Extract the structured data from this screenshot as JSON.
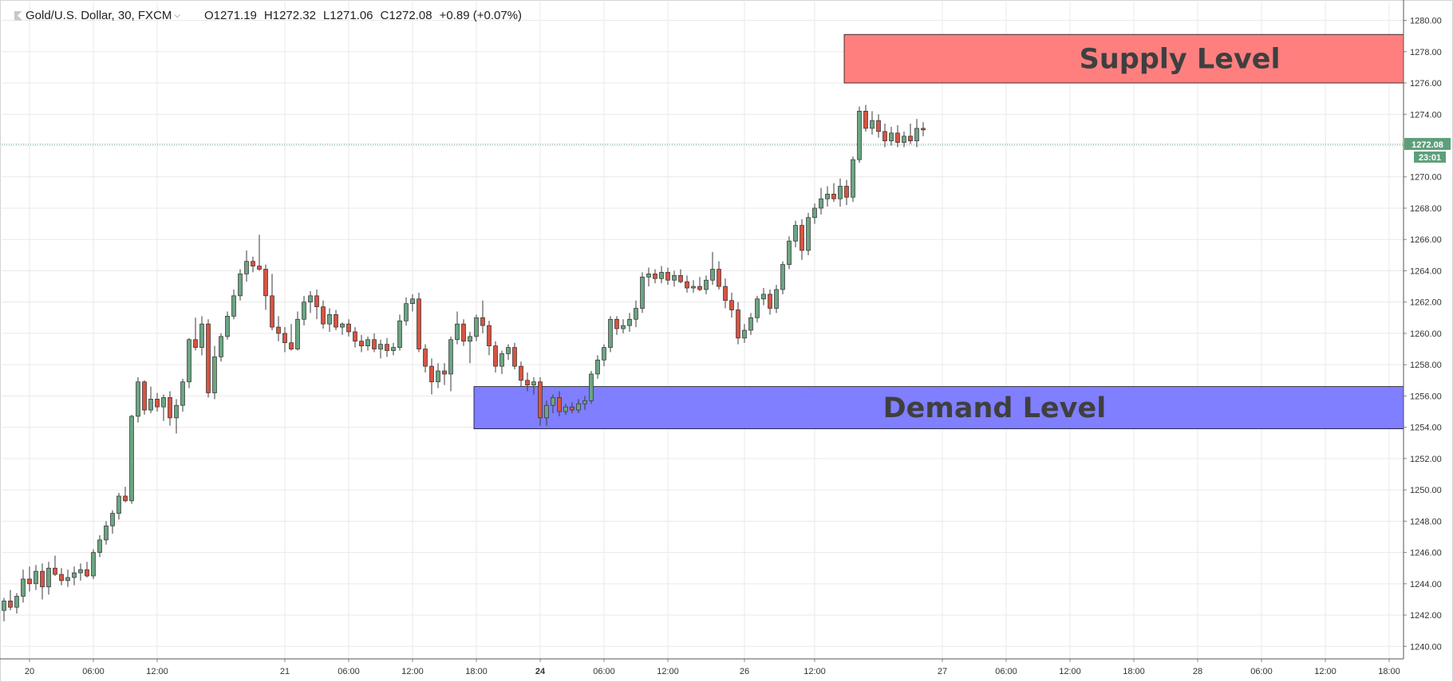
{
  "legend": {
    "symbol": "Gold/U.S. Dollar, 30, FXCM",
    "open": "O1271.19",
    "high": "H1272.32",
    "low": "L1271.06",
    "close": "C1272.08",
    "change": "+0.89 (+0.07%)"
  },
  "price_label": "1272.08",
  "timer_label": "23:01",
  "colors": {
    "up": "#6ba583",
    "down": "#d75442",
    "supply_zone": "#ff7f7f",
    "demand_zone": "#7f7fff",
    "price_tag": "#5e9f7a",
    "grid": "#e9e9e9"
  },
  "chart_data": {
    "type": "candlestick",
    "grid": true,
    "ylim": [
      1239.2,
      1281.2
    ],
    "y_ticks": [
      "1240.00",
      "1242.00",
      "1244.00",
      "1246.00",
      "1248.00",
      "1250.00",
      "1252.00",
      "1254.00",
      "1256.00",
      "1258.00",
      "1260.00",
      "1262.00",
      "1264.00",
      "1266.00",
      "1268.00",
      "1270.00",
      "1272.00",
      "1274.00",
      "1276.00",
      "1278.00",
      "1280.00"
    ],
    "x_ticks": [
      {
        "label": "20",
        "i": 4,
        "bold": false
      },
      {
        "label": "06:00",
        "i": 14,
        "bold": false
      },
      {
        "label": "12:00",
        "i": 24,
        "bold": false
      },
      {
        "label": "21",
        "i": 44,
        "bold": false
      },
      {
        "label": "06:00",
        "i": 54,
        "bold": false
      },
      {
        "label": "12:00",
        "i": 64,
        "bold": false
      },
      {
        "label": "18:00",
        "i": 74,
        "bold": false
      },
      {
        "label": "24",
        "i": 84,
        "bold": true
      },
      {
        "label": "06:00",
        "i": 94,
        "bold": false
      },
      {
        "label": "12:00",
        "i": 104,
        "bold": false
      },
      {
        "label": "26",
        "i": 116,
        "bold": false
      },
      {
        "label": "12:00",
        "i": 127,
        "bold": false
      },
      {
        "label": "27",
        "i": 147,
        "bold": false
      },
      {
        "label": "06:00",
        "i": 157,
        "bold": false
      },
      {
        "label": "12:00",
        "i": 167,
        "bold": false
      },
      {
        "label": "18:00",
        "i": 177,
        "bold": false
      },
      {
        "label": "28",
        "i": 187,
        "bold": false
      },
      {
        "label": "06:00",
        "i": 197,
        "bold": false
      },
      {
        "label": "12:00",
        "i": 207,
        "bold": false
      },
      {
        "label": "18:00",
        "i": 217,
        "bold": false
      }
    ],
    "last_price": 1272.08,
    "zones": [
      {
        "label": "Supply Level",
        "from_i": 132,
        "low": 1276.0,
        "high": 1279.1,
        "color": "#ff7f7f"
      },
      {
        "label": "Demand Level",
        "from_i": 74,
        "low": 1253.9,
        "high": 1256.6,
        "color": "#7f7fff"
      }
    ],
    "candles": [
      [
        1242.3,
        1243.1,
        1241.6,
        1242.9
      ],
      [
        1242.9,
        1243.6,
        1242.3,
        1242.5
      ],
      [
        1242.5,
        1243.4,
        1242.1,
        1243.2
      ],
      [
        1243.2,
        1244.9,
        1242.8,
        1244.3
      ],
      [
        1244.3,
        1245.1,
        1243.5,
        1244.0
      ],
      [
        1244.0,
        1245.2,
        1243.6,
        1244.8
      ],
      [
        1244.8,
        1245.3,
        1243.0,
        1243.8
      ],
      [
        1243.8,
        1245.4,
        1243.3,
        1245.0
      ],
      [
        1245.0,
        1245.8,
        1244.5,
        1244.6
      ],
      [
        1244.6,
        1245.0,
        1243.9,
        1244.2
      ],
      [
        1244.2,
        1244.9,
        1243.8,
        1244.4
      ],
      [
        1244.4,
        1245.1,
        1243.9,
        1244.7
      ],
      [
        1244.7,
        1245.3,
        1244.2,
        1244.9
      ],
      [
        1244.9,
        1245.4,
        1244.4,
        1244.5
      ],
      [
        1244.5,
        1246.2,
        1244.3,
        1246.0
      ],
      [
        1246.0,
        1247.1,
        1245.7,
        1246.8
      ],
      [
        1246.8,
        1248.0,
        1246.5,
        1247.7
      ],
      [
        1247.7,
        1248.7,
        1247.2,
        1248.5
      ],
      [
        1248.5,
        1249.8,
        1248.1,
        1249.6
      ],
      [
        1249.6,
        1250.2,
        1249.2,
        1249.3
      ],
      [
        1249.3,
        1254.8,
        1249.1,
        1254.7
      ],
      [
        1254.7,
        1257.2,
        1254.3,
        1256.9
      ],
      [
        1256.9,
        1257.0,
        1254.8,
        1255.1
      ],
      [
        1255.1,
        1256.6,
        1254.9,
        1255.8
      ],
      [
        1255.8,
        1256.2,
        1255.0,
        1255.3
      ],
      [
        1255.3,
        1256.1,
        1254.4,
        1255.9
      ],
      [
        1255.9,
        1256.3,
        1254.1,
        1254.6
      ],
      [
        1254.6,
        1255.8,
        1253.6,
        1255.4
      ],
      [
        1255.4,
        1257.1,
        1255.0,
        1256.9
      ],
      [
        1256.9,
        1259.7,
        1256.5,
        1259.6
      ],
      [
        1259.6,
        1261.0,
        1258.9,
        1259.1
      ],
      [
        1259.1,
        1261.1,
        1258.6,
        1260.6
      ],
      [
        1260.6,
        1260.9,
        1255.9,
        1256.2
      ],
      [
        1256.2,
        1259.2,
        1255.8,
        1258.5
      ],
      [
        1258.5,
        1260.0,
        1258.2,
        1259.8
      ],
      [
        1259.8,
        1261.4,
        1259.6,
        1261.1
      ],
      [
        1261.1,
        1262.8,
        1260.9,
        1262.4
      ],
      [
        1262.4,
        1264.1,
        1262.1,
        1263.8
      ],
      [
        1263.8,
        1265.3,
        1263.3,
        1264.6
      ],
      [
        1264.6,
        1264.9,
        1263.9,
        1264.3
      ],
      [
        1264.3,
        1266.3,
        1264.0,
        1264.1
      ],
      [
        1264.1,
        1264.4,
        1261.5,
        1262.4
      ],
      [
        1262.4,
        1263.8,
        1260.2,
        1260.4
      ],
      [
        1260.4,
        1261.1,
        1259.5,
        1260.0
      ],
      [
        1260.0,
        1260.4,
        1258.8,
        1259.4
      ],
      [
        1259.4,
        1260.6,
        1258.9,
        1259.0
      ],
      [
        1259.0,
        1261.4,
        1258.9,
        1260.9
      ],
      [
        1260.9,
        1262.4,
        1260.5,
        1262.0
      ],
      [
        1262.0,
        1262.7,
        1261.3,
        1262.4
      ],
      [
        1262.4,
        1262.8,
        1260.9,
        1261.7
      ],
      [
        1261.7,
        1262.1,
        1260.3,
        1260.6
      ],
      [
        1260.6,
        1261.6,
        1260.1,
        1261.2
      ],
      [
        1261.2,
        1261.5,
        1260.2,
        1260.4
      ],
      [
        1260.4,
        1260.7,
        1259.9,
        1260.6
      ],
      [
        1260.6,
        1260.9,
        1259.8,
        1260.1
      ],
      [
        1260.1,
        1260.4,
        1259.1,
        1259.5
      ],
      [
        1259.5,
        1259.9,
        1258.8,
        1259.2
      ],
      [
        1259.2,
        1259.8,
        1258.9,
        1259.6
      ],
      [
        1259.6,
        1260.0,
        1258.8,
        1259.0
      ],
      [
        1259.0,
        1259.6,
        1258.4,
        1259.3
      ],
      [
        1259.3,
        1259.7,
        1258.5,
        1258.9
      ],
      [
        1258.9,
        1259.4,
        1258.6,
        1259.1
      ],
      [
        1259.1,
        1261.2,
        1258.9,
        1260.8
      ],
      [
        1260.8,
        1262.3,
        1260.5,
        1261.9
      ],
      [
        1261.9,
        1262.5,
        1261.4,
        1262.2
      ],
      [
        1262.2,
        1262.6,
        1258.8,
        1259.0
      ],
      [
        1259.0,
        1259.3,
        1257.5,
        1257.9
      ],
      [
        1257.9,
        1258.4,
        1256.1,
        1256.9
      ],
      [
        1256.9,
        1258.1,
        1256.5,
        1257.6
      ],
      [
        1257.6,
        1258.1,
        1256.7,
        1257.4
      ],
      [
        1257.4,
        1259.8,
        1256.3,
        1259.6
      ],
      [
        1259.6,
        1261.4,
        1259.3,
        1260.6
      ],
      [
        1260.6,
        1260.9,
        1259.2,
        1259.5
      ],
      [
        1259.5,
        1260.1,
        1258.1,
        1259.8
      ],
      [
        1259.8,
        1261.2,
        1259.5,
        1261.0
      ],
      [
        1261.0,
        1262.1,
        1260.0,
        1260.5
      ],
      [
        1260.5,
        1260.8,
        1258.6,
        1259.2
      ],
      [
        1259.2,
        1259.5,
        1257.5,
        1257.9
      ],
      [
        1257.9,
        1258.9,
        1257.4,
        1258.7
      ],
      [
        1258.7,
        1259.3,
        1258.3,
        1259.1
      ],
      [
        1259.1,
        1259.4,
        1257.7,
        1257.9
      ],
      [
        1257.9,
        1258.2,
        1256.6,
        1257.0
      ],
      [
        1257.0,
        1257.5,
        1256.3,
        1256.7
      ],
      [
        1256.7,
        1257.2,
        1256.1,
        1256.9
      ],
      [
        1256.9,
        1257.2,
        1254.1,
        1254.6
      ],
      [
        1254.6,
        1255.7,
        1254.1,
        1255.4
      ],
      [
        1255.4,
        1256.1,
        1254.9,
        1255.9
      ],
      [
        1255.9,
        1256.3,
        1254.7,
        1255.0
      ],
      [
        1255.0,
        1255.5,
        1254.8,
        1255.3
      ],
      [
        1255.3,
        1255.6,
        1254.9,
        1255.1
      ],
      [
        1255.1,
        1255.8,
        1254.9,
        1255.5
      ],
      [
        1255.5,
        1256.0,
        1255.1,
        1255.7
      ],
      [
        1255.7,
        1257.6,
        1255.5,
        1257.4
      ],
      [
        1257.4,
        1258.6,
        1257.1,
        1258.3
      ],
      [
        1258.3,
        1259.3,
        1257.9,
        1259.1
      ],
      [
        1259.1,
        1261.1,
        1258.8,
        1260.9
      ],
      [
        1260.9,
        1261.1,
        1259.9,
        1260.3
      ],
      [
        1260.3,
        1260.9,
        1260.0,
        1260.5
      ],
      [
        1260.5,
        1261.3,
        1260.1,
        1260.9
      ],
      [
        1260.9,
        1262.1,
        1260.4,
        1261.6
      ],
      [
        1261.6,
        1263.9,
        1261.3,
        1263.6
      ],
      [
        1263.6,
        1264.2,
        1263.0,
        1263.8
      ],
      [
        1263.8,
        1264.1,
        1263.2,
        1263.5
      ],
      [
        1263.5,
        1264.3,
        1263.2,
        1263.9
      ],
      [
        1263.9,
        1264.2,
        1263.1,
        1263.4
      ],
      [
        1263.4,
        1264.0,
        1263.0,
        1263.7
      ],
      [
        1263.7,
        1264.1,
        1263.2,
        1263.3
      ],
      [
        1263.3,
        1263.7,
        1262.6,
        1262.9
      ],
      [
        1262.9,
        1263.4,
        1262.6,
        1263.0
      ],
      [
        1263.0,
        1263.6,
        1262.7,
        1262.8
      ],
      [
        1262.8,
        1263.7,
        1262.5,
        1263.4
      ],
      [
        1263.4,
        1265.2,
        1263.1,
        1264.1
      ],
      [
        1264.1,
        1264.6,
        1262.8,
        1263.0
      ],
      [
        1263.0,
        1263.5,
        1261.6,
        1262.1
      ],
      [
        1262.1,
        1262.6,
        1261.0,
        1261.5
      ],
      [
        1261.5,
        1262.0,
        1259.3,
        1259.7
      ],
      [
        1259.7,
        1260.6,
        1259.4,
        1260.2
      ],
      [
        1260.2,
        1261.3,
        1259.9,
        1261.0
      ],
      [
        1261.0,
        1262.4,
        1260.7,
        1262.2
      ],
      [
        1262.2,
        1262.9,
        1261.8,
        1262.5
      ],
      [
        1262.5,
        1262.8,
        1261.2,
        1261.6
      ],
      [
        1261.6,
        1263.1,
        1261.3,
        1262.8
      ],
      [
        1262.8,
        1264.6,
        1262.5,
        1264.4
      ],
      [
        1264.4,
        1266.2,
        1264.1,
        1265.9
      ],
      [
        1265.9,
        1267.2,
        1265.5,
        1266.9
      ],
      [
        1266.9,
        1267.3,
        1264.7,
        1265.3
      ],
      [
        1265.3,
        1267.7,
        1265.0,
        1267.4
      ],
      [
        1267.4,
        1268.3,
        1267.0,
        1268.0
      ],
      [
        1268.0,
        1269.3,
        1267.6,
        1268.6
      ],
      [
        1268.6,
        1269.4,
        1268.1,
        1268.9
      ],
      [
        1268.9,
        1269.6,
        1268.4,
        1268.6
      ],
      [
        1268.6,
        1269.9,
        1268.1,
        1269.4
      ],
      [
        1269.4,
        1269.8,
        1268.2,
        1268.7
      ],
      [
        1268.7,
        1271.3,
        1268.4,
        1271.1
      ],
      [
        1271.1,
        1274.5,
        1270.9,
        1274.2
      ],
      [
        1274.2,
        1274.6,
        1272.9,
        1273.1
      ],
      [
        1273.1,
        1274.2,
        1272.7,
        1273.6
      ],
      [
        1273.6,
        1274.0,
        1272.5,
        1272.9
      ],
      [
        1272.9,
        1273.4,
        1271.9,
        1272.3
      ],
      [
        1272.3,
        1273.2,
        1272.0,
        1272.8
      ],
      [
        1272.8,
        1273.3,
        1271.9,
        1272.2
      ],
      [
        1272.2,
        1272.9,
        1271.9,
        1272.6
      ],
      [
        1272.6,
        1273.4,
        1272.1,
        1272.3
      ],
      [
        1272.3,
        1273.7,
        1271.9,
        1273.1
      ],
      [
        1273.1,
        1273.5,
        1272.6,
        1273.0
      ]
    ]
  }
}
